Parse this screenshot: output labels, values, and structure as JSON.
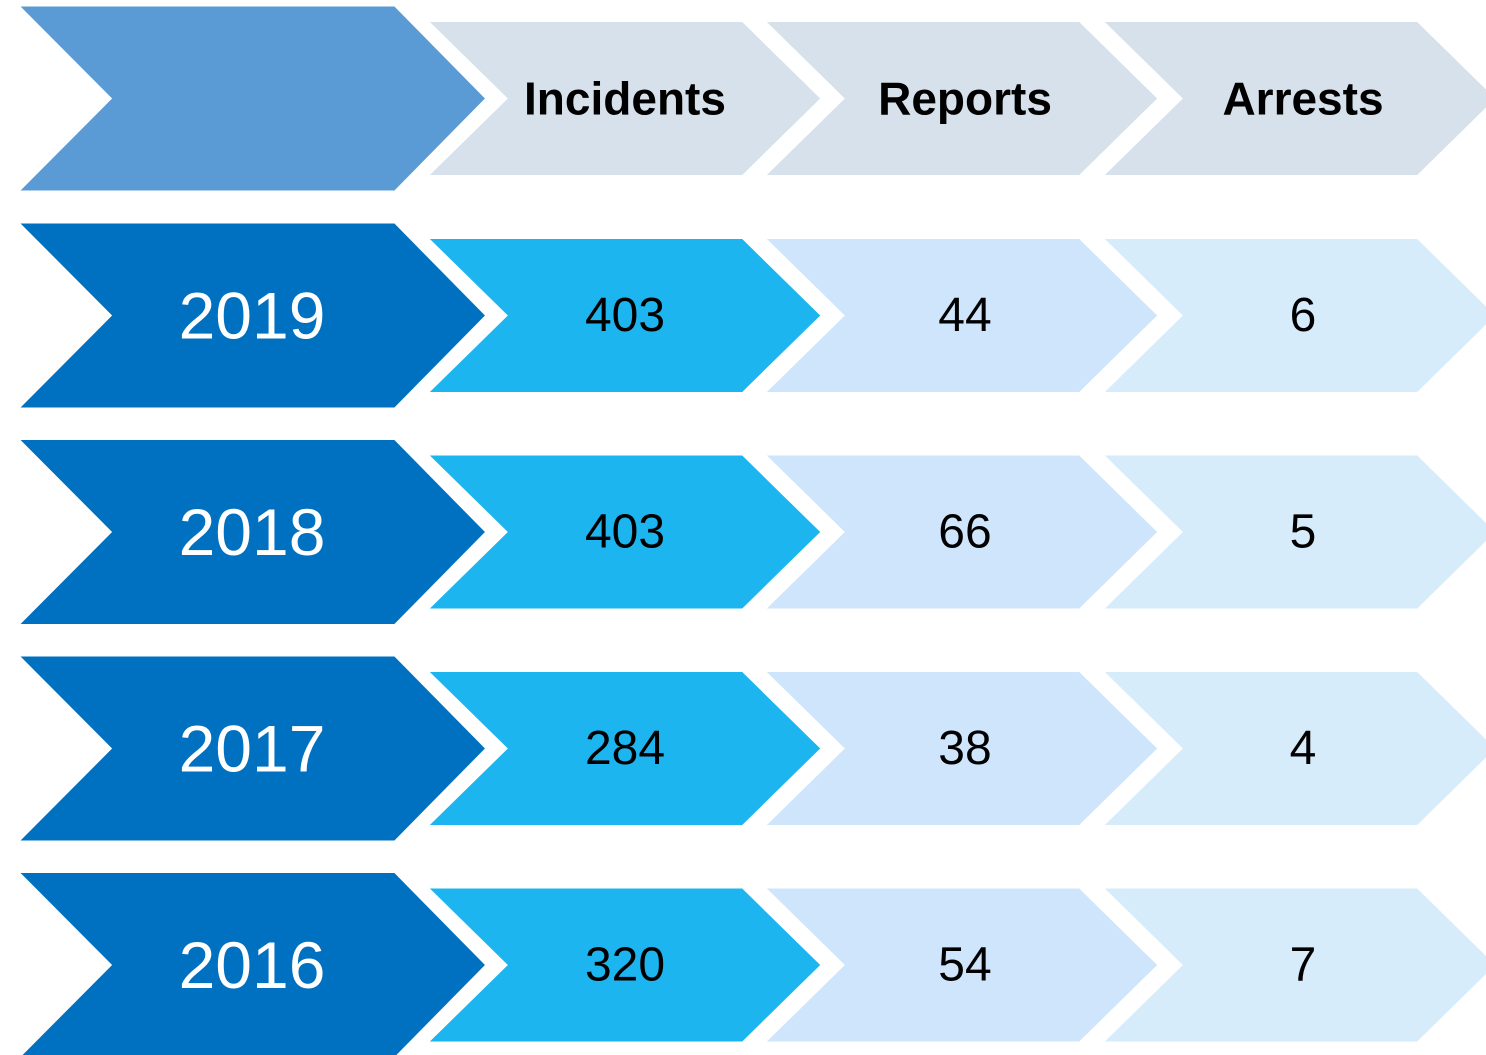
{
  "table": {
    "headers": [
      "Incidents",
      "Reports",
      "Arrests"
    ],
    "rows": [
      {
        "year": "2019",
        "values": [
          403,
          44,
          6
        ]
      },
      {
        "year": "2018",
        "values": [
          403,
          66,
          5
        ]
      },
      {
        "year": "2017",
        "values": [
          284,
          38,
          4
        ]
      },
      {
        "year": "2016",
        "values": [
          320,
          54,
          7
        ]
      }
    ]
  }
}
